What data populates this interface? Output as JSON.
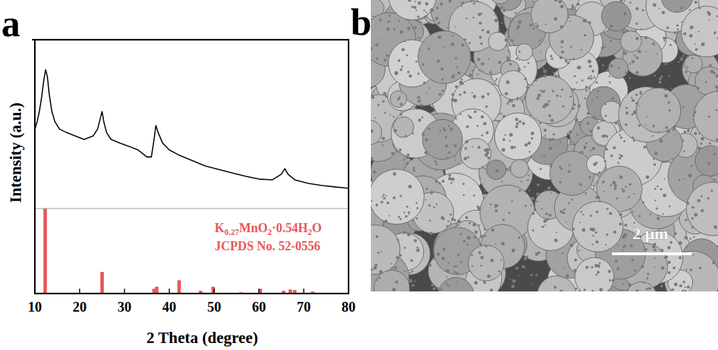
{
  "chart_data": {
    "type": "line",
    "panel_label": "a",
    "x_label": "2 Theta (degree)",
    "y_label": "Intensity (a.u.)",
    "xlim": [
      10,
      80
    ],
    "xticks": [
      10,
      20,
      30,
      40,
      50,
      60,
      70,
      80
    ],
    "ylim": [
      0,
      100
    ],
    "tick_labels": "x",
    "legend": "lower right",
    "annotation": "JCPDS No. 52-0556",
    "series": [
      {
        "type": "line",
        "color": "#000000",
        "x": [
          10,
          10.5,
          11,
          11.5,
          12,
          12.4,
          12.8,
          13.2,
          13.8,
          14.5,
          15.5,
          17,
          19,
          21,
          23,
          24,
          24.6,
          25,
          25.4,
          26,
          27,
          29,
          31,
          33,
          35,
          36,
          36.6,
          37,
          37.5,
          38.5,
          40,
          42,
          45,
          48,
          51,
          54,
          57,
          60,
          63,
          65,
          65.8,
          66.5,
          68,
          71,
          74,
          77,
          80
        ],
        "values": [
          64.8,
          67.6,
          71.7,
          77.2,
          84.1,
          88.2,
          85.4,
          78.6,
          71.7,
          67.6,
          64.8,
          63.5,
          62.1,
          60.7,
          62.1,
          64.8,
          69.0,
          71.7,
          67.6,
          63.5,
          60.7,
          59.3,
          58.0,
          56.6,
          53.8,
          53.8,
          60.7,
          66.2,
          63.5,
          59.3,
          56.6,
          54.7,
          52.5,
          50.3,
          48.9,
          47.5,
          46.2,
          45.1,
          44.8,
          47.0,
          49.2,
          47.0,
          44.8,
          43.4,
          42.6,
          42.0,
          41.5
        ]
      },
      {
        "name": "K0.27MnO2·0.54H2O",
        "type": "bar",
        "color": "#e8585a",
        "x": [
          12.3,
          25.0,
          36.6,
          37.2,
          42.2,
          47,
          49.8,
          56,
          60.3,
          65.5,
          67,
          68,
          72
        ],
        "values": [
          33.5,
          8.5,
          1.9,
          2.7,
          5.2,
          1.1,
          2.7,
          0.5,
          1.9,
          1.1,
          1.6,
          1.4,
          0.8
        ]
      }
    ]
  },
  "image_panel": {
    "panel_label": "b",
    "scale_bar": "2 μm"
  }
}
